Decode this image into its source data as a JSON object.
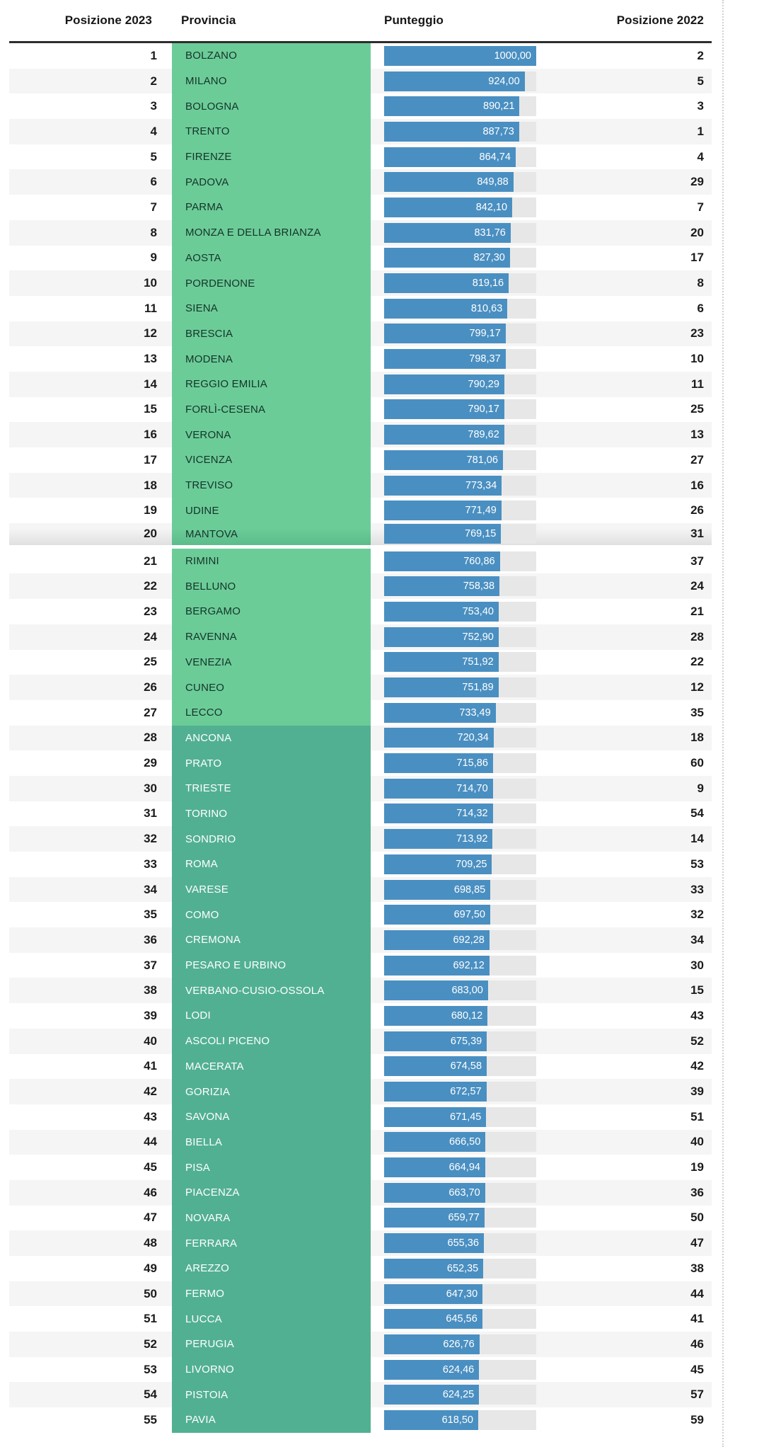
{
  "header": {
    "col_rank_2023": "Posizione 2023",
    "col_province": "Provincia",
    "col_score": "Punteggio",
    "col_rank_2022": "Posizione 2022"
  },
  "bands": {
    "light_band_max_rank": 27,
    "seam_after_rank": 20
  },
  "colors": {
    "light_green": "#6CCC98",
    "dark_teal": "#52B092",
    "bar_blue": "#4A8FC1",
    "track_gray": "#E7E7E7",
    "stripe_gray": "#F5F5F5",
    "header_border": "#2D2D2D"
  },
  "chart_data": {
    "type": "bar",
    "orientation": "horizontal",
    "value_range": [
      0,
      1000
    ],
    "columns": [
      "Posizione 2023",
      "Provincia",
      "Punteggio",
      "Posizione 2022"
    ],
    "rows": [
      {
        "rank_2023": 1,
        "province": "BOLZANO",
        "score_label": "1000,00",
        "score": 1000.0,
        "rank_2022": 2
      },
      {
        "rank_2023": 2,
        "province": "MILANO",
        "score_label": "924,00",
        "score": 924.0,
        "rank_2022": 5
      },
      {
        "rank_2023": 3,
        "province": "BOLOGNA",
        "score_label": "890,21",
        "score": 890.21,
        "rank_2022": 3
      },
      {
        "rank_2023": 4,
        "province": "TRENTO",
        "score_label": "887,73",
        "score": 887.73,
        "rank_2022": 1
      },
      {
        "rank_2023": 5,
        "province": "FIRENZE",
        "score_label": "864,74",
        "score": 864.74,
        "rank_2022": 4
      },
      {
        "rank_2023": 6,
        "province": "PADOVA",
        "score_label": "849,88",
        "score": 849.88,
        "rank_2022": 29
      },
      {
        "rank_2023": 7,
        "province": "PARMA",
        "score_label": "842,10",
        "score": 842.1,
        "rank_2022": 7
      },
      {
        "rank_2023": 8,
        "province": "MONZA E DELLA BRIANZA",
        "score_label": "831,76",
        "score": 831.76,
        "rank_2022": 20
      },
      {
        "rank_2023": 9,
        "province": "AOSTA",
        "score_label": "827,30",
        "score": 827.3,
        "rank_2022": 17
      },
      {
        "rank_2023": 10,
        "province": "PORDENONE",
        "score_label": "819,16",
        "score": 819.16,
        "rank_2022": 8
      },
      {
        "rank_2023": 11,
        "province": "SIENA",
        "score_label": "810,63",
        "score": 810.63,
        "rank_2022": 6
      },
      {
        "rank_2023": 12,
        "province": "BRESCIA",
        "score_label": "799,17",
        "score": 799.17,
        "rank_2022": 23
      },
      {
        "rank_2023": 13,
        "province": "MODENA",
        "score_label": "798,37",
        "score": 798.37,
        "rank_2022": 10
      },
      {
        "rank_2023": 14,
        "province": "REGGIO EMILIA",
        "score_label": "790,29",
        "score": 790.29,
        "rank_2022": 11
      },
      {
        "rank_2023": 15,
        "province": "FORLÌ-CESENA",
        "score_label": "790,17",
        "score": 790.17,
        "rank_2022": 25
      },
      {
        "rank_2023": 16,
        "province": "VERONA",
        "score_label": "789,62",
        "score": 789.62,
        "rank_2022": 13
      },
      {
        "rank_2023": 17,
        "province": "VICENZA",
        "score_label": "781,06",
        "score": 781.06,
        "rank_2022": 27
      },
      {
        "rank_2023": 18,
        "province": "TREVISO",
        "score_label": "773,34",
        "score": 773.34,
        "rank_2022": 16
      },
      {
        "rank_2023": 19,
        "province": "UDINE",
        "score_label": "771,49",
        "score": 771.49,
        "rank_2022": 26
      },
      {
        "rank_2023": 20,
        "province": "MANTOVA",
        "score_label": "769,15",
        "score": 769.15,
        "rank_2022": 31
      },
      {
        "rank_2023": 21,
        "province": "RIMINI",
        "score_label": "760,86",
        "score": 760.86,
        "rank_2022": 37
      },
      {
        "rank_2023": 22,
        "province": "BELLUNO",
        "score_label": "758,38",
        "score": 758.38,
        "rank_2022": 24
      },
      {
        "rank_2023": 23,
        "province": "BERGAMO",
        "score_label": "753,40",
        "score": 753.4,
        "rank_2022": 21
      },
      {
        "rank_2023": 24,
        "province": "RAVENNA",
        "score_label": "752,90",
        "score": 752.9,
        "rank_2022": 28
      },
      {
        "rank_2023": 25,
        "province": "VENEZIA",
        "score_label": "751,92",
        "score": 751.92,
        "rank_2022": 22
      },
      {
        "rank_2023": 26,
        "province": "CUNEO",
        "score_label": "751,89",
        "score": 751.89,
        "rank_2022": 12
      },
      {
        "rank_2023": 27,
        "province": "LECCO",
        "score_label": "733,49",
        "score": 733.49,
        "rank_2022": 35
      },
      {
        "rank_2023": 28,
        "province": "ANCONA",
        "score_label": "720,34",
        "score": 720.34,
        "rank_2022": 18
      },
      {
        "rank_2023": 29,
        "province": "PRATO",
        "score_label": "715,86",
        "score": 715.86,
        "rank_2022": 60
      },
      {
        "rank_2023": 30,
        "province": "TRIESTE",
        "score_label": "714,70",
        "score": 714.7,
        "rank_2022": 9
      },
      {
        "rank_2023": 31,
        "province": "TORINO",
        "score_label": "714,32",
        "score": 714.32,
        "rank_2022": 54
      },
      {
        "rank_2023": 32,
        "province": "SONDRIO",
        "score_label": "713,92",
        "score": 713.92,
        "rank_2022": 14
      },
      {
        "rank_2023": 33,
        "province": "ROMA",
        "score_label": "709,25",
        "score": 709.25,
        "rank_2022": 53
      },
      {
        "rank_2023": 34,
        "province": "VARESE",
        "score_label": "698,85",
        "score": 698.85,
        "rank_2022": 33
      },
      {
        "rank_2023": 35,
        "province": "COMO",
        "score_label": "697,50",
        "score": 697.5,
        "rank_2022": 32
      },
      {
        "rank_2023": 36,
        "province": "CREMONA",
        "score_label": "692,28",
        "score": 692.28,
        "rank_2022": 34
      },
      {
        "rank_2023": 37,
        "province": "PESARO E URBINO",
        "score_label": "692,12",
        "score": 692.12,
        "rank_2022": 30
      },
      {
        "rank_2023": 38,
        "province": "VERBANO-CUSIO-OSSOLA",
        "score_label": "683,00",
        "score": 683.0,
        "rank_2022": 15
      },
      {
        "rank_2023": 39,
        "province": "LODI",
        "score_label": "680,12",
        "score": 680.12,
        "rank_2022": 43
      },
      {
        "rank_2023": 40,
        "province": "ASCOLI PICENO",
        "score_label": "675,39",
        "score": 675.39,
        "rank_2022": 52
      },
      {
        "rank_2023": 41,
        "province": "MACERATA",
        "score_label": "674,58",
        "score": 674.58,
        "rank_2022": 42
      },
      {
        "rank_2023": 42,
        "province": "GORIZIA",
        "score_label": "672,57",
        "score": 672.57,
        "rank_2022": 39
      },
      {
        "rank_2023": 43,
        "province": "SAVONA",
        "score_label": "671,45",
        "score": 671.45,
        "rank_2022": 51
      },
      {
        "rank_2023": 44,
        "province": "BIELLA",
        "score_label": "666,50",
        "score": 666.5,
        "rank_2022": 40
      },
      {
        "rank_2023": 45,
        "province": "PISA",
        "score_label": "664,94",
        "score": 664.94,
        "rank_2022": 19
      },
      {
        "rank_2023": 46,
        "province": "PIACENZA",
        "score_label": "663,70",
        "score": 663.7,
        "rank_2022": 36
      },
      {
        "rank_2023": 47,
        "province": "NOVARA",
        "score_label": "659,77",
        "score": 659.77,
        "rank_2022": 50
      },
      {
        "rank_2023": 48,
        "province": "FERRARA",
        "score_label": "655,36",
        "score": 655.36,
        "rank_2022": 47
      },
      {
        "rank_2023": 49,
        "province": "AREZZO",
        "score_label": "652,35",
        "score": 652.35,
        "rank_2022": 38
      },
      {
        "rank_2023": 50,
        "province": "FERMO",
        "score_label": "647,30",
        "score": 647.3,
        "rank_2022": 44
      },
      {
        "rank_2023": 51,
        "province": "LUCCA",
        "score_label": "645,56",
        "score": 645.56,
        "rank_2022": 41
      },
      {
        "rank_2023": 52,
        "province": "PERUGIA",
        "score_label": "626,76",
        "score": 626.76,
        "rank_2022": 46
      },
      {
        "rank_2023": 53,
        "province": "LIVORNO",
        "score_label": "624,46",
        "score": 624.46,
        "rank_2022": 45
      },
      {
        "rank_2023": 54,
        "province": "PISTOIA",
        "score_label": "624,25",
        "score": 624.25,
        "rank_2022": 57
      },
      {
        "rank_2023": 55,
        "province": "PAVIA",
        "score_label": "618,50",
        "score": 618.5,
        "rank_2022": 59
      }
    ]
  }
}
